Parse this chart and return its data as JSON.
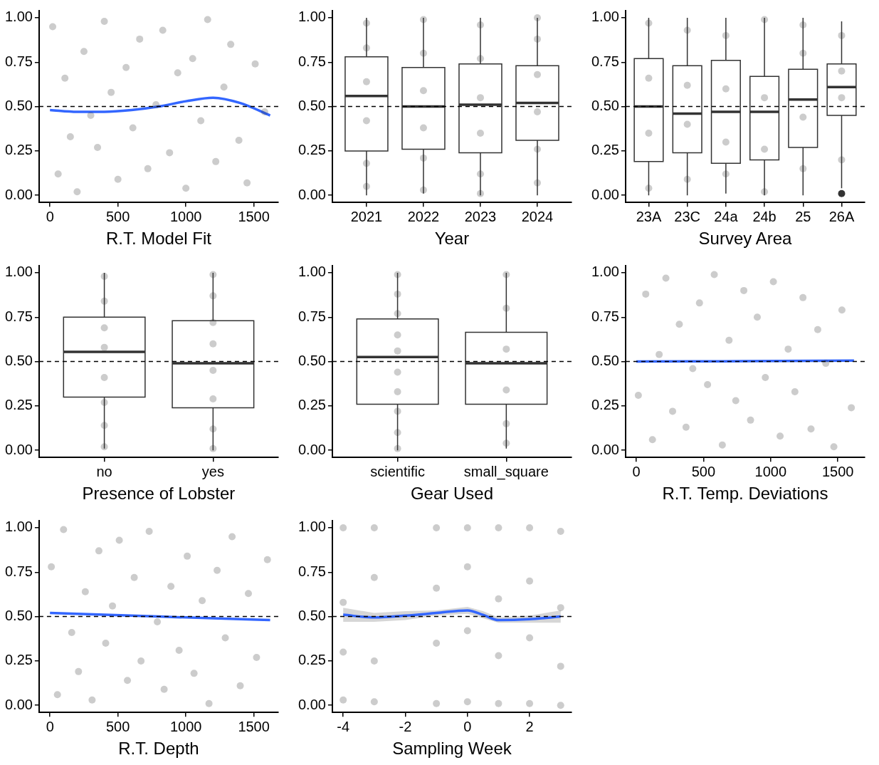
{
  "chart_data": [
    {
      "type": "scatter",
      "xlabel": "R.T. Model Fit",
      "xlim": [
        -80,
        1680
      ],
      "xticks": [
        0,
        500,
        1000,
        1500
      ],
      "ylim": [
        -0.04,
        1.04
      ],
      "yticks": [
        {
          "value": 0,
          "label": "0.00"
        },
        {
          "value": 0.25,
          "label": "0.25"
        },
        {
          "value": 0.5,
          "label": "0.50"
        },
        {
          "value": 0.75,
          "label": "0.75"
        },
        {
          "value": 1,
          "label": "1.00"
        }
      ],
      "ref_lines": [
        {
          "axis": "y",
          "value": 0.5,
          "line_style": "dashed",
          "color": "#000000"
        }
      ],
      "series": [
        {
          "type": "scatter",
          "marker": "circle",
          "color": "#333333",
          "x": [
            20,
            60,
            110,
            150,
            200,
            250,
            300,
            350,
            400,
            450,
            500,
            560,
            610,
            660,
            720,
            780,
            830,
            880,
            940,
            1000,
            1050,
            1110,
            1160,
            1220,
            1280,
            1330,
            1390,
            1450,
            1510,
            1580
          ],
          "values": [
            0.95,
            0.12,
            0.66,
            0.33,
            0.02,
            0.81,
            0.45,
            0.27,
            0.98,
            0.58,
            0.09,
            0.72,
            0.38,
            0.88,
            0.15,
            0.51,
            0.93,
            0.24,
            0.69,
            0.04,
            0.77,
            0.42,
            0.99,
            0.19,
            0.61,
            0.85,
            0.31,
            0.07,
            0.74,
            0.47
          ]
        },
        {
          "type": "line",
          "color": "#3366ff",
          "x": [
            0,
            200,
            400,
            600,
            800,
            1000,
            1200,
            1400,
            1620
          ],
          "values": [
            0.48,
            0.47,
            0.47,
            0.48,
            0.5,
            0.53,
            0.55,
            0.52,
            0.45
          ]
        }
      ]
    },
    {
      "type": "box",
      "xlabel": "Year",
      "x": [
        2021,
        2022,
        2023,
        2024
      ],
      "xlim": [
        2020.4,
        2024.6
      ],
      "xticks": [
        2021,
        2022,
        2023,
        2024
      ],
      "ylim": [
        -0.04,
        1.04
      ],
      "yticks": [
        {
          "value": 0,
          "label": "0.00"
        },
        {
          "value": 0.25,
          "label": "0.25"
        },
        {
          "value": 0.5,
          "label": "0.50"
        },
        {
          "value": 0.75,
          "label": "0.75"
        },
        {
          "value": 1,
          "label": "1.00"
        }
      ],
      "ref_lines": [
        {
          "axis": "y",
          "value": 0.5,
          "line_style": "dashed",
          "color": "#000000"
        }
      ],
      "series": [
        {
          "type": "box",
          "color": "#333333",
          "boxes": [
            {
              "low": 0,
              "q1": 0.25,
              "median": 0.56,
              "q3": 0.78,
              "high": 1
            },
            {
              "low": 0.01,
              "q1": 0.26,
              "median": 0.5,
              "q3": 0.72,
              "high": 1
            },
            {
              "low": 0,
              "q1": 0.24,
              "median": 0.51,
              "q3": 0.74,
              "high": 1
            },
            {
              "low": 0,
              "q1": 0.31,
              "median": 0.52,
              "q3": 0.73,
              "high": 1
            }
          ]
        },
        {
          "type": "scatter",
          "marker": "circle",
          "color": "#333333",
          "x": [
            2021,
            2021,
            2021,
            2021,
            2021,
            2021,
            2022,
            2022,
            2022,
            2022,
            2022,
            2022,
            2023,
            2023,
            2023,
            2023,
            2023,
            2023,
            2024,
            2024,
            2024,
            2024,
            2024,
            2024
          ],
          "values": [
            0.05,
            0.18,
            0.42,
            0.64,
            0.83,
            0.97,
            0.03,
            0.21,
            0.38,
            0.59,
            0.8,
            0.99,
            0.01,
            0.12,
            0.35,
            0.55,
            0.77,
            0.96,
            0.07,
            0.26,
            0.47,
            0.68,
            0.88,
            1
          ]
        }
      ]
    },
    {
      "type": "box",
      "xlabel": "Survey Area",
      "categories": [
        "23A",
        "23C",
        "24a",
        "24b",
        "25",
        "26A"
      ],
      "ylim": [
        -0.04,
        1.04
      ],
      "yticks": [
        {
          "value": 0,
          "label": "0.00"
        },
        {
          "value": 0.25,
          "label": "0.25"
        },
        {
          "value": 0.5,
          "label": "0.50"
        },
        {
          "value": 0.75,
          "label": "0.75"
        },
        {
          "value": 1,
          "label": "1.00"
        }
      ],
      "ref_lines": [
        {
          "axis": "y",
          "value": 0.5,
          "line_style": "dashed",
          "color": "#000000"
        }
      ],
      "series": [
        {
          "type": "box",
          "color": "#333333",
          "boxes": [
            {
              "low": 0,
              "q1": 0.19,
              "median": 0.5,
              "q3": 0.77,
              "high": 1
            },
            {
              "low": 0,
              "q1": 0.24,
              "median": 0.46,
              "q3": 0.73,
              "high": 1
            },
            {
              "low": 0.01,
              "q1": 0.18,
              "median": 0.47,
              "q3": 0.76,
              "high": 1
            },
            {
              "low": 0,
              "q1": 0.2,
              "median": 0.47,
              "q3": 0.67,
              "high": 1
            },
            {
              "low": 0,
              "q1": 0.27,
              "median": 0.54,
              "q3": 0.71,
              "high": 1
            },
            {
              "low": 0.04,
              "q1": 0.45,
              "median": 0.61,
              "q3": 0.74,
              "high": 0.98,
              "outliers": [
                0.01
              ]
            }
          ]
        },
        {
          "type": "scatter",
          "marker": "circle",
          "color": "#333333",
          "x": [
            "23A",
            "23A",
            "23A",
            "23A",
            "23C",
            "23C",
            "23C",
            "23C",
            "24a",
            "24a",
            "24a",
            "24a",
            "24b",
            "24b",
            "24b",
            "24b",
            "25",
            "25",
            "25",
            "25",
            "26A",
            "26A",
            "26A",
            "26A"
          ],
          "values": [
            0.04,
            0.35,
            0.66,
            0.97,
            0.09,
            0.4,
            0.62,
            0.93,
            0.12,
            0.3,
            0.6,
            0.9,
            0.02,
            0.26,
            0.55,
            0.99,
            0.15,
            0.44,
            0.8,
            0.96,
            0.2,
            0.55,
            0.7,
            0.9
          ]
        }
      ]
    },
    {
      "type": "box",
      "xlabel": "Presence of Lobster",
      "categories": [
        "no",
        "yes"
      ],
      "ylim": [
        -0.04,
        1.04
      ],
      "yticks": [
        {
          "value": 0,
          "label": "0.00"
        },
        {
          "value": 0.25,
          "label": "0.25"
        },
        {
          "value": 0.5,
          "label": "0.50"
        },
        {
          "value": 0.75,
          "label": "0.75"
        },
        {
          "value": 1,
          "label": "1.00"
        }
      ],
      "ref_lines": [
        {
          "axis": "y",
          "value": 0.5,
          "line_style": "dashed",
          "color": "#000000"
        }
      ],
      "series": [
        {
          "type": "box",
          "color": "#333333",
          "boxes": [
            {
              "low": 0.01,
              "q1": 0.3,
              "median": 0.555,
              "q3": 0.75,
              "high": 1
            },
            {
              "low": 0,
              "q1": 0.24,
              "median": 0.49,
              "q3": 0.73,
              "high": 1
            }
          ]
        },
        {
          "type": "scatter",
          "marker": "circle",
          "color": "#333333",
          "x": [
            "no",
            "no",
            "no",
            "no",
            "no",
            "no",
            "no",
            "no",
            "yes",
            "yes",
            "yes",
            "yes",
            "yes",
            "yes",
            "yes",
            "yes"
          ],
          "values": [
            0.02,
            0.14,
            0.27,
            0.41,
            0.58,
            0.69,
            0.84,
            0.98,
            0.01,
            0.12,
            0.29,
            0.45,
            0.6,
            0.72,
            0.87,
            0.99
          ]
        }
      ]
    },
    {
      "type": "box",
      "xlabel": "Gear Used",
      "categories": [
        "scientific",
        "small_square"
      ],
      "ylim": [
        -0.04,
        1.04
      ],
      "yticks": [
        {
          "value": 0,
          "label": "0.00"
        },
        {
          "value": 0.25,
          "label": "0.25"
        },
        {
          "value": 0.5,
          "label": "0.50"
        },
        {
          "value": 0.75,
          "label": "0.75"
        },
        {
          "value": 1,
          "label": "1.00"
        }
      ],
      "ref_lines": [
        {
          "axis": "y",
          "value": 0.5,
          "line_style": "dashed",
          "color": "#000000"
        }
      ],
      "series": [
        {
          "type": "box",
          "color": "#333333",
          "boxes": [
            {
              "low": 0,
              "q1": 0.26,
              "median": 0.525,
              "q3": 0.74,
              "high": 1
            },
            {
              "low": 0.01,
              "q1": 0.26,
              "median": 0.49,
              "q3": 0.665,
              "high": 1
            }
          ]
        },
        {
          "type": "scatter",
          "marker": "circle",
          "color": "#333333",
          "x": [
            "scientific",
            "scientific",
            "scientific",
            "scientific",
            "scientific",
            "scientific",
            "scientific",
            "scientific",
            "scientific",
            "scientific",
            "small_square",
            "small_square",
            "small_square",
            "small_square",
            "small_square",
            "small_square"
          ],
          "values": [
            0.01,
            0.1,
            0.22,
            0.33,
            0.44,
            0.56,
            0.65,
            0.77,
            0.88,
            0.99,
            0.04,
            0.15,
            0.34,
            0.57,
            0.8,
            0.99
          ]
        }
      ]
    },
    {
      "type": "scatter",
      "xlabel": "R.T. Temp. Deviations",
      "xlim": [
        -80,
        1700
      ],
      "xticks": [
        0,
        500,
        1000,
        1500
      ],
      "ylim": [
        -0.04,
        1.04
      ],
      "yticks": [
        {
          "value": 0,
          "label": "0.00"
        },
        {
          "value": 0.25,
          "label": "0.25"
        },
        {
          "value": 0.5,
          "label": "0.50"
        },
        {
          "value": 0.75,
          "label": "0.75"
        },
        {
          "value": 1,
          "label": "1.00"
        }
      ],
      "ref_lines": [
        {
          "axis": "y",
          "value": 0.5,
          "line_style": "dashed",
          "color": "#000000"
        }
      ],
      "series": [
        {
          "type": "scatter",
          "marker": "circle",
          "color": "#333333",
          "x": [
            15,
            70,
            120,
            170,
            220,
            270,
            320,
            370,
            420,
            470,
            530,
            580,
            640,
            690,
            740,
            800,
            850,
            900,
            960,
            1020,
            1070,
            1130,
            1180,
            1240,
            1300,
            1350,
            1410,
            1470,
            1530,
            1600
          ],
          "values": [
            0.31,
            0.88,
            0.06,
            0.54,
            0.97,
            0.22,
            0.71,
            0.13,
            0.46,
            0.83,
            0.37,
            0.99,
            0.03,
            0.62,
            0.28,
            0.9,
            0.17,
            0.75,
            0.41,
            0.95,
            0.08,
            0.57,
            0.33,
            0.86,
            0.12,
            0.68,
            0.49,
            0.02,
            0.79,
            0.24
          ]
        },
        {
          "type": "line",
          "color": "#3366ff",
          "x": [
            0,
            800,
            1620
          ],
          "values": [
            0.5,
            0.502,
            0.505
          ]
        }
      ]
    },
    {
      "type": "scatter",
      "xlabel": "R.T. Depth",
      "xlim": [
        -80,
        1680
      ],
      "xticks": [
        0,
        500,
        1000,
        1500
      ],
      "ylim": [
        -0.04,
        1.04
      ],
      "yticks": [
        {
          "value": 0,
          "label": "0.00"
        },
        {
          "value": 0.25,
          "label": "0.25"
        },
        {
          "value": 0.5,
          "label": "0.50"
        },
        {
          "value": 0.75,
          "label": "0.75"
        },
        {
          "value": 1,
          "label": "1.00"
        }
      ],
      "ref_lines": [
        {
          "axis": "y",
          "value": 0.5,
          "line_style": "dashed",
          "color": "#000000"
        }
      ],
      "series": [
        {
          "type": "scatter",
          "marker": "circle",
          "color": "#333333",
          "x": [
            10,
            55,
            100,
            160,
            210,
            260,
            310,
            360,
            410,
            460,
            510,
            570,
            620,
            670,
            730,
            790,
            840,
            890,
            950,
            1010,
            1060,
            1120,
            1170,
            1230,
            1290,
            1340,
            1400,
            1460,
            1520,
            1600
          ],
          "values": [
            0.78,
            0.06,
            0.99,
            0.41,
            0.19,
            0.64,
            0.03,
            0.87,
            0.35,
            0.56,
            0.93,
            0.14,
            0.72,
            0.25,
            0.98,
            0.47,
            0.09,
            0.67,
            0.31,
            0.84,
            0.18,
            0.59,
            0.01,
            0.76,
            0.38,
            0.95,
            0.11,
            0.63,
            0.27,
            0.82
          ]
        },
        {
          "type": "line",
          "color": "#3366ff",
          "x": [
            0,
            400,
            800,
            1200,
            1620
          ],
          "values": [
            0.52,
            0.51,
            0.5,
            0.49,
            0.48
          ]
        }
      ]
    },
    {
      "type": "scatter",
      "xlabel": "Sampling Week",
      "xlim": [
        -4.35,
        3.35
      ],
      "xticks": [
        -4,
        -2,
        0,
        2
      ],
      "ylim": [
        -0.04,
        1.04
      ],
      "yticks": [
        {
          "value": 0,
          "label": "0.00"
        },
        {
          "value": 0.25,
          "label": "0.25"
        },
        {
          "value": 0.5,
          "label": "0.50"
        },
        {
          "value": 0.75,
          "label": "0.75"
        },
        {
          "value": 1,
          "label": "1.00"
        }
      ],
      "ref_lines": [
        {
          "axis": "y",
          "value": 0.5,
          "line_style": "dashed",
          "color": "#000000"
        }
      ],
      "series": [
        {
          "type": "scatter",
          "marker": "circle",
          "color": "#333333",
          "x": [
            -4,
            -4,
            -4,
            -4,
            -3,
            -3,
            -3,
            -3,
            -1,
            -1,
            -1,
            -1,
            0,
            0,
            0,
            0,
            1,
            1,
            1,
            1,
            2,
            2,
            2,
            2,
            3,
            3,
            3,
            3
          ],
          "values": [
            0.03,
            0.3,
            0.58,
            1,
            0.02,
            0.25,
            0.72,
            1,
            0.01,
            0.35,
            0.66,
            1,
            0.02,
            0.42,
            0.78,
            1,
            0.01,
            0.28,
            0.6,
            1,
            0.01,
            0.38,
            0.7,
            1,
            0,
            0.22,
            0.55,
            0.98
          ]
        },
        {
          "type": "line",
          "color": "#3366ff",
          "x": [
            -4,
            -3,
            -2,
            -1,
            0,
            0.5,
            1,
            2,
            3
          ],
          "values": [
            0.51,
            0.495,
            0.505,
            0.52,
            0.535,
            0.51,
            0.48,
            0.485,
            0.5
          ],
          "lower": [
            0.47,
            0.47,
            0.48,
            0.505,
            0.515,
            0.49,
            0.465,
            0.465,
            0.465
          ],
          "upper": [
            0.55,
            0.52,
            0.53,
            0.535,
            0.555,
            0.53,
            0.495,
            0.505,
            0.535
          ]
        }
      ]
    }
  ]
}
